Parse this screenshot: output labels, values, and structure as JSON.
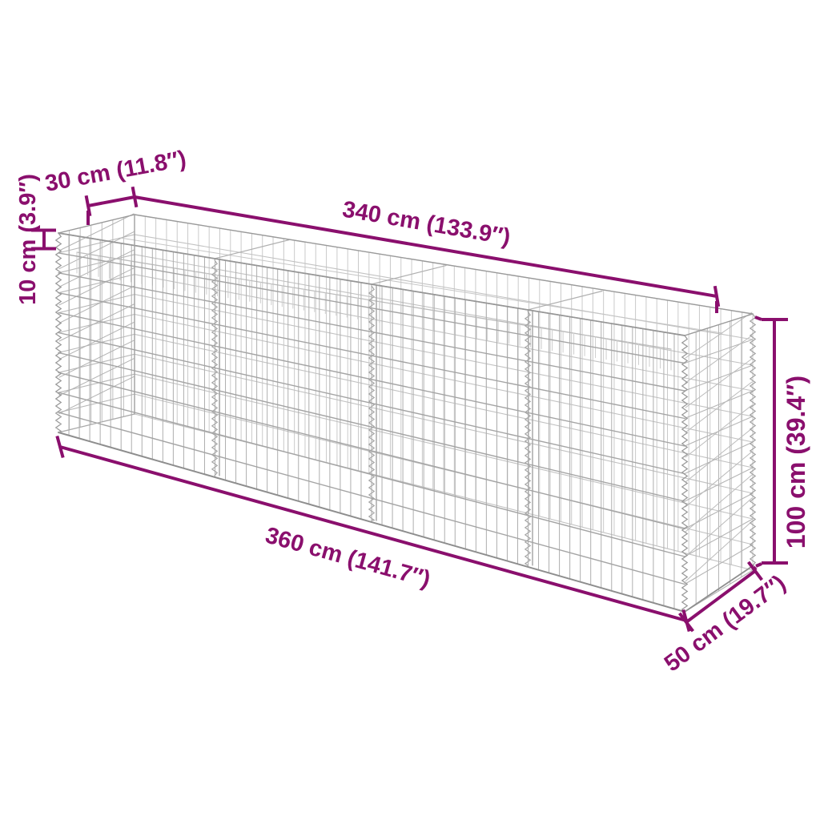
{
  "diagram": {
    "background": "#ffffff",
    "annotation_color": "#8a0f6d",
    "mesh_color": "#adadad",
    "labels": {
      "top_width": "30 cm (11.8″)",
      "top_length": "340 cm (133.9″)",
      "wall_gap": "10 cm (3.9″)",
      "height": "100 cm (39.4″)",
      "base_length": "360 cm (141.7″)",
      "base_width": "50 cm (19.7″)"
    }
  }
}
